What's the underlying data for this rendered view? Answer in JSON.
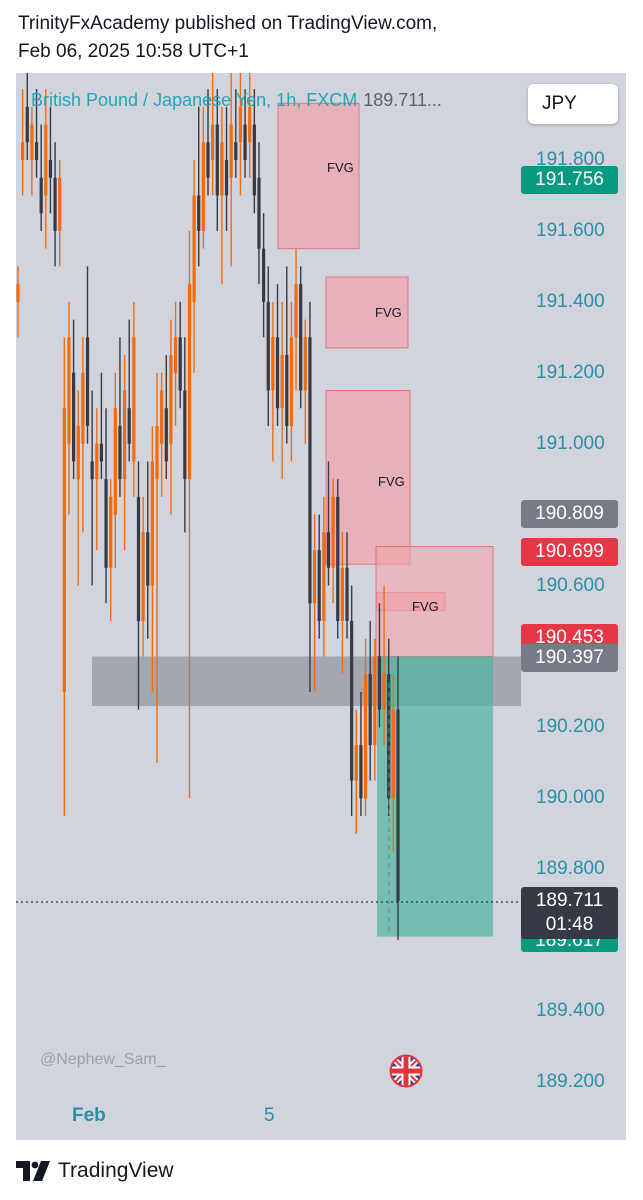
{
  "header": {
    "line1": "TrinityFxAcademy published on TradingView.com,",
    "line2": "Feb 06, 2025 10:58 UTC+1"
  },
  "symbol": {
    "name": "British Pound / Japanese Yen, 1h, FXCM",
    "last": "189.711..."
  },
  "currency_button": "JPY",
  "price_tags": {
    "upper_target": "191.756",
    "tag_190809": "190.809",
    "tag_190699": "190.699",
    "tag_190453": "190.453",
    "tag_190397": "190.397",
    "current_price": "189.711",
    "countdown": "01:48",
    "lower_target_partial": "189.617"
  },
  "fvg_label": "FVG",
  "time_axis": {
    "month": "Feb",
    "day": "5"
  },
  "watermark": "@Nephew_Sam_",
  "footer": {
    "brand": "TradingView"
  },
  "colors": {
    "background": "#d1d4dc",
    "candle_up": "#f26b0f",
    "candle_down": "#363a45",
    "fvg_zone": "#f2a3aa",
    "target_zone": "#4db6a0",
    "gray_zone": "#9598a1",
    "axis_text": "#2a8fa6"
  },
  "chart_data": {
    "type": "candlestick",
    "title": "British Pound / Japanese Yen, 1h, FXCM",
    "y_axis": {
      "range": [
        189.1,
        192.0
      ],
      "ticks": [
        "191.800",
        "191.600",
        "191.400",
        "191.200",
        "191.000",
        "190.600",
        "190.200",
        "190.000",
        "189.800",
        "189.400",
        "189.200"
      ]
    },
    "x_axis": {
      "labels": [
        "Feb",
        "5"
      ]
    },
    "zones": [
      {
        "kind": "FVG",
        "from": 191.55,
        "to": 191.96
      },
      {
        "kind": "FVG",
        "from": 191.27,
        "to": 191.47
      },
      {
        "kind": "FVG",
        "from": 190.66,
        "to": 191.15
      },
      {
        "kind": "FVG",
        "from": 190.53,
        "to": 190.58
      },
      {
        "kind": "supply",
        "from": 190.4,
        "to": 190.71
      },
      {
        "kind": "gray",
        "from": 190.26,
        "to": 190.4
      },
      {
        "kind": "target",
        "from": 189.61,
        "to": 190.4
      }
    ],
    "candles": [
      {
        "o": 191.4,
        "h": 191.5,
        "l": 191.3,
        "c": 191.45
      },
      {
        "o": 191.8,
        "h": 192.0,
        "l": 191.7,
        "c": 191.85
      },
      {
        "o": 191.95,
        "h": 192.1,
        "l": 191.8,
        "c": 191.85
      },
      {
        "o": 191.8,
        "h": 191.95,
        "l": 191.7,
        "c": 191.9
      },
      {
        "o": 191.85,
        "h": 192.0,
        "l": 191.75,
        "c": 191.8
      },
      {
        "o": 191.75,
        "h": 191.9,
        "l": 191.6,
        "c": 191.65
      },
      {
        "o": 191.7,
        "h": 192.0,
        "l": 191.55,
        "c": 191.9
      },
      {
        "o": 191.8,
        "h": 191.95,
        "l": 191.65,
        "c": 191.75
      },
      {
        "o": 191.75,
        "h": 191.85,
        "l": 191.5,
        "c": 191.6
      },
      {
        "o": 191.6,
        "h": 191.8,
        "l": 191.5,
        "c": 191.75
      },
      {
        "o": 190.3,
        "h": 191.3,
        "l": 189.95,
        "c": 191.1
      },
      {
        "o": 191.0,
        "h": 191.4,
        "l": 190.8,
        "c": 191.3
      },
      {
        "o": 191.2,
        "h": 191.35,
        "l": 190.9,
        "c": 190.95
      },
      {
        "o": 190.9,
        "h": 191.15,
        "l": 190.6,
        "c": 191.05
      },
      {
        "o": 191.0,
        "h": 191.3,
        "l": 190.75,
        "c": 191.2
      },
      {
        "o": 191.3,
        "h": 191.5,
        "l": 191.0,
        "c": 191.05
      },
      {
        "o": 190.95,
        "h": 191.15,
        "l": 190.6,
        "c": 190.9
      },
      {
        "o": 190.9,
        "h": 191.1,
        "l": 190.7,
        "c": 191.0
      },
      {
        "o": 191.0,
        "h": 191.2,
        "l": 190.9,
        "c": 190.95
      },
      {
        "o": 190.9,
        "h": 191.1,
        "l": 190.55,
        "c": 190.65
      },
      {
        "o": 190.65,
        "h": 190.9,
        "l": 190.5,
        "c": 190.85
      },
      {
        "o": 190.8,
        "h": 191.2,
        "l": 190.65,
        "c": 191.1
      },
      {
        "o": 191.05,
        "h": 191.3,
        "l": 190.85,
        "c": 190.9
      },
      {
        "o": 190.9,
        "h": 191.25,
        "l": 190.7,
        "c": 191.15
      },
      {
        "o": 191.1,
        "h": 191.35,
        "l": 190.95,
        "c": 191.0
      },
      {
        "o": 190.95,
        "h": 191.4,
        "l": 190.85,
        "c": 191.3
      },
      {
        "o": 190.85,
        "h": 190.95,
        "l": 190.25,
        "c": 190.5
      },
      {
        "o": 190.5,
        "h": 190.85,
        "l": 190.4,
        "c": 190.75
      },
      {
        "o": 190.75,
        "h": 190.95,
        "l": 190.45,
        "c": 190.6
      },
      {
        "o": 190.6,
        "h": 191.05,
        "l": 190.3,
        "c": 190.95
      },
      {
        "o": 190.9,
        "h": 191.2,
        "l": 190.1,
        "c": 191.05
      },
      {
        "o": 191.0,
        "h": 191.2,
        "l": 190.85,
        "c": 191.15
      },
      {
        "o": 191.1,
        "h": 191.25,
        "l": 190.9,
        "c": 190.95
      },
      {
        "o": 191.0,
        "h": 191.35,
        "l": 190.8,
        "c": 191.25
      },
      {
        "o": 191.2,
        "h": 191.4,
        "l": 191.05,
        "c": 191.3
      },
      {
        "o": 191.3,
        "h": 191.4,
        "l": 191.1,
        "c": 191.15
      },
      {
        "o": 191.15,
        "h": 191.3,
        "l": 190.75,
        "c": 190.9
      },
      {
        "o": 190.9,
        "h": 191.6,
        "l": 190.0,
        "c": 191.45
      },
      {
        "o": 191.4,
        "h": 191.8,
        "l": 191.2,
        "c": 191.7
      },
      {
        "o": 191.7,
        "h": 191.95,
        "l": 191.5,
        "c": 191.6
      },
      {
        "o": 191.6,
        "h": 191.95,
        "l": 191.55,
        "c": 191.85
      },
      {
        "o": 191.85,
        "h": 192.0,
        "l": 191.7,
        "c": 191.75
      },
      {
        "o": 191.8,
        "h": 192.05,
        "l": 191.7,
        "c": 191.9
      },
      {
        "o": 191.9,
        "h": 192.0,
        "l": 191.6,
        "c": 191.7
      },
      {
        "o": 191.7,
        "h": 191.95,
        "l": 191.45,
        "c": 191.85
      },
      {
        "o": 191.8,
        "h": 191.95,
        "l": 191.6,
        "c": 191.7
      },
      {
        "o": 191.75,
        "h": 192.05,
        "l": 191.5,
        "c": 191.9
      },
      {
        "o": 191.85,
        "h": 192.0,
        "l": 191.75,
        "c": 191.8
      },
      {
        "o": 191.85,
        "h": 192.1,
        "l": 191.7,
        "c": 191.95
      },
      {
        "o": 191.9,
        "h": 192.0,
        "l": 191.75,
        "c": 191.8
      },
      {
        "o": 191.85,
        "h": 192.05,
        "l": 191.75,
        "c": 191.95
      },
      {
        "o": 191.9,
        "h": 192.0,
        "l": 191.65,
        "c": 191.7
      },
      {
        "o": 191.75,
        "h": 191.85,
        "l": 191.45,
        "c": 191.55
      },
      {
        "o": 191.55,
        "h": 191.65,
        "l": 191.3,
        "c": 191.4
      },
      {
        "o": 191.4,
        "h": 191.5,
        "l": 191.05,
        "c": 191.15
      },
      {
        "o": 191.15,
        "h": 191.4,
        "l": 190.95,
        "c": 191.3
      },
      {
        "o": 191.3,
        "h": 191.45,
        "l": 191.05,
        "c": 191.1
      },
      {
        "o": 191.1,
        "h": 191.4,
        "l": 190.9,
        "c": 191.25
      },
      {
        "o": 191.25,
        "h": 191.5,
        "l": 191.0,
        "c": 191.05
      },
      {
        "o": 191.05,
        "h": 191.4,
        "l": 190.95,
        "c": 191.3
      },
      {
        "o": 191.3,
        "h": 191.55,
        "l": 191.15,
        "c": 191.45
      },
      {
        "o": 191.45,
        "h": 191.5,
        "l": 191.1,
        "c": 191.15
      },
      {
        "o": 191.15,
        "h": 191.35,
        "l": 191.0,
        "c": 191.3
      },
      {
        "o": 191.3,
        "h": 191.4,
        "l": 190.3,
        "c": 190.55
      },
      {
        "o": 190.55,
        "h": 190.8,
        "l": 190.3,
        "c": 190.7
      },
      {
        "o": 190.7,
        "h": 190.8,
        "l": 190.45,
        "c": 190.5
      },
      {
        "o": 190.5,
        "h": 190.85,
        "l": 190.4,
        "c": 190.75
      },
      {
        "o": 190.75,
        "h": 190.95,
        "l": 190.6,
        "c": 190.65
      },
      {
        "o": 190.65,
        "h": 190.9,
        "l": 190.55,
        "c": 190.85
      },
      {
        "o": 190.85,
        "h": 190.9,
        "l": 190.45,
        "c": 190.5
      },
      {
        "o": 190.5,
        "h": 190.75,
        "l": 190.35,
        "c": 190.65
      },
      {
        "o": 190.65,
        "h": 190.75,
        "l": 190.45,
        "c": 190.5
      },
      {
        "o": 190.5,
        "h": 190.6,
        "l": 189.95,
        "c": 190.05
      },
      {
        "o": 190.05,
        "h": 190.25,
        "l": 189.9,
        "c": 190.15
      },
      {
        "o": 190.15,
        "h": 190.3,
        "l": 189.95,
        "c": 190.0
      },
      {
        "o": 190.0,
        "h": 190.45,
        "l": 189.95,
        "c": 190.35
      },
      {
        "o": 190.35,
        "h": 190.5,
        "l": 190.05,
        "c": 190.15
      },
      {
        "o": 190.15,
        "h": 190.45,
        "l": 190.05,
        "c": 190.4
      },
      {
        "o": 190.4,
        "h": 190.55,
        "l": 190.2,
        "c": 190.25
      },
      {
        "o": 190.25,
        "h": 190.6,
        "l": 190.15,
        "c": 190.35
      },
      {
        "o": 190.35,
        "h": 190.45,
        "l": 189.95,
        "c": 190.0
      },
      {
        "o": 190.0,
        "h": 190.35,
        "l": 189.85,
        "c": 190.25
      },
      {
        "o": 190.25,
        "h": 190.4,
        "l": 189.6,
        "c": 189.71
      }
    ]
  }
}
